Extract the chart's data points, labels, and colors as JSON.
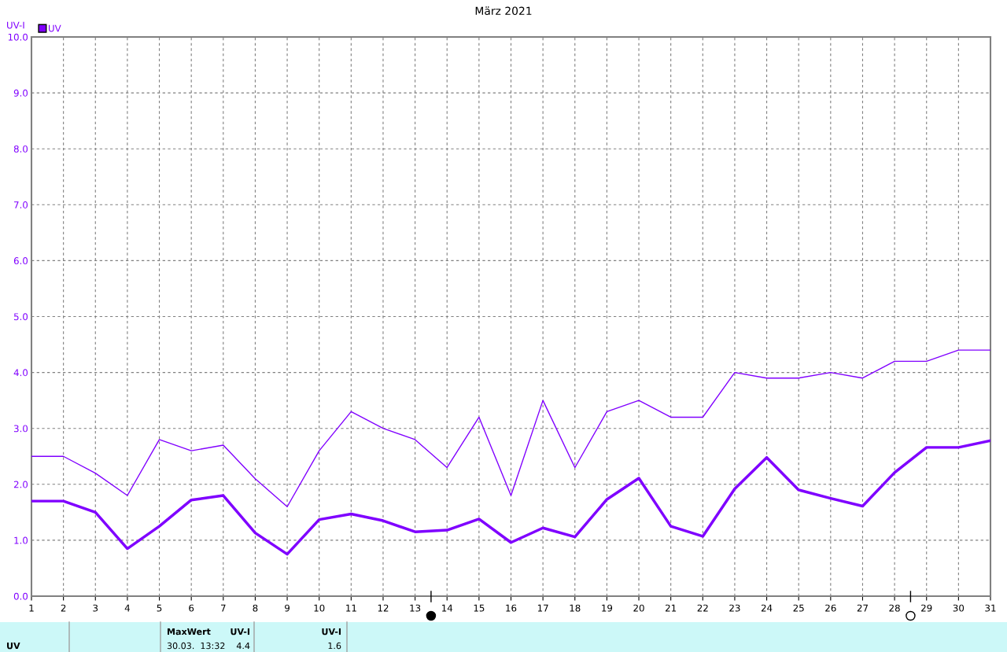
{
  "chart_data": {
    "type": "line",
    "title": "März 2021",
    "ylabel": "UV-I",
    "x": [
      1,
      2,
      3,
      4,
      5,
      6,
      7,
      8,
      9,
      10,
      11,
      12,
      13,
      14,
      15,
      16,
      17,
      18,
      19,
      20,
      21,
      22,
      23,
      24,
      25,
      26,
      27,
      28,
      29,
      30,
      31
    ],
    "series": [
      {
        "color": "#8000ff",
        "values": [
          2.5,
          2.5,
          2.2,
          1.8,
          2.8,
          2.6,
          2.7,
          2.1,
          1.6,
          2.6,
          3.3,
          3.0,
          2.8,
          2.3,
          3.2,
          1.8,
          3.5,
          2.3,
          3.3,
          3.5,
          3.2,
          3.2,
          4.0,
          3.9,
          3.9,
          4.0,
          3.9,
          4.2,
          4.2,
          4.4,
          4.4
        ]
      },
      {
        "name": "UV",
        "color": "#7f00ff",
        "values": [
          1.7,
          1.7,
          1.5,
          0.85,
          1.25,
          1.72,
          1.8,
          1.13,
          0.75,
          1.37,
          1.47,
          1.35,
          1.15,
          1.18,
          1.38,
          0.96,
          1.22,
          1.06,
          1.73,
          2.11,
          1.25,
          1.07,
          1.92,
          2.48,
          1.9,
          1.75,
          1.61,
          2.21,
          2.66,
          2.66,
          2.78
        ]
      }
    ],
    "xlim": [
      1,
      31
    ],
    "xticks": [
      1,
      2,
      3,
      4,
      5,
      6,
      7,
      8,
      9,
      10,
      11,
      12,
      13,
      14,
      15,
      16,
      17,
      18,
      19,
      20,
      21,
      22,
      23,
      24,
      25,
      26,
      27,
      28,
      29,
      30,
      31
    ],
    "ylim": [
      0,
      10
    ],
    "yticks": [
      {
        "value": 0,
        "label": "0.0"
      },
      {
        "value": 1,
        "label": "1.0"
      },
      {
        "value": 2,
        "label": "2.0"
      },
      {
        "value": 3,
        "label": "3.0"
      },
      {
        "value": 4,
        "label": "4.0"
      },
      {
        "value": 5,
        "label": "5.0"
      },
      {
        "value": 6,
        "label": "6.0"
      },
      {
        "value": 7,
        "label": "7.0"
      },
      {
        "value": 8,
        "label": "8.0"
      },
      {
        "value": 9,
        "label": "9.0"
      },
      {
        "value": 10,
        "label": "10.0"
      }
    ],
    "grid": true,
    "legend": "top left",
    "marker": "none",
    "line_style": "solid",
    "annotations": [
      "UV",
      "MaxWert",
      "UV-I",
      "30.03.  13:32",
      "4.4",
      "UV-I",
      "1.6"
    ]
  }
}
